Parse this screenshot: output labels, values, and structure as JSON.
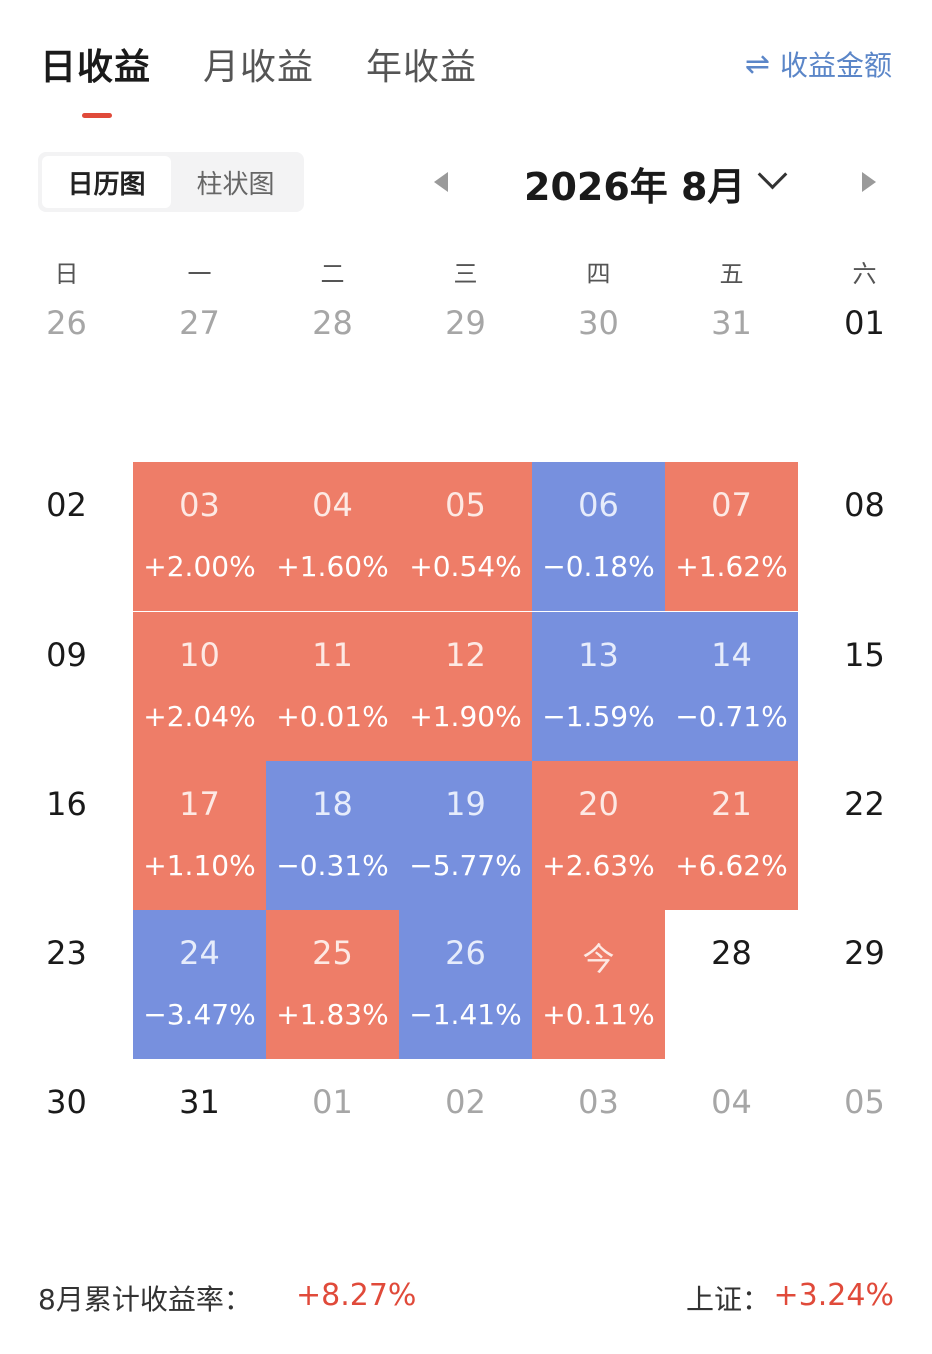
{
  "tabs": [
    {
      "label": "日收益",
      "active": true
    },
    {
      "label": "月收益",
      "active": false
    },
    {
      "label": "年收益",
      "active": false
    }
  ],
  "toggle_amount": {
    "icon": "swap-arrows-icon",
    "label": "收益金额"
  },
  "view_switch": [
    {
      "label": "日历图",
      "active": true
    },
    {
      "label": "柱状图",
      "active": false
    }
  ],
  "month_title": "2026年 8月",
  "weekdays": [
    "日",
    "一",
    "二",
    "三",
    "四",
    "五",
    "六"
  ],
  "colors": {
    "up": "#ee7d68",
    "down": "#7790de",
    "accent": "#e04a3a"
  },
  "weeks": [
    [
      {
        "day": "26",
        "type": "other"
      },
      {
        "day": "27",
        "type": "other"
      },
      {
        "day": "28",
        "type": "other"
      },
      {
        "day": "29",
        "type": "other"
      },
      {
        "day": "30",
        "type": "other"
      },
      {
        "day": "31",
        "type": "other"
      },
      {
        "day": "01",
        "type": "plain"
      }
    ],
    [
      {
        "day": "02",
        "type": "plain"
      },
      {
        "day": "03",
        "type": "up",
        "pct": "+2.00%"
      },
      {
        "day": "04",
        "type": "up",
        "pct": "+1.60%"
      },
      {
        "day": "05",
        "type": "up",
        "pct": "+0.54%"
      },
      {
        "day": "06",
        "type": "down",
        "pct": "−0.18%"
      },
      {
        "day": "07",
        "type": "up",
        "pct": "+1.62%"
      },
      {
        "day": "08",
        "type": "plain"
      }
    ],
    [
      {
        "day": "09",
        "type": "plain"
      },
      {
        "day": "10",
        "type": "up",
        "pct": "+2.04%"
      },
      {
        "day": "11",
        "type": "up",
        "pct": "+0.01%"
      },
      {
        "day": "12",
        "type": "up",
        "pct": "+1.90%"
      },
      {
        "day": "13",
        "type": "down",
        "pct": "−1.59%"
      },
      {
        "day": "14",
        "type": "down",
        "pct": "−0.71%"
      },
      {
        "day": "15",
        "type": "plain"
      }
    ],
    [
      {
        "day": "16",
        "type": "plain"
      },
      {
        "day": "17",
        "type": "up",
        "pct": "+1.10%"
      },
      {
        "day": "18",
        "type": "down",
        "pct": "−0.31%"
      },
      {
        "day": "19",
        "type": "down",
        "pct": "−5.77%"
      },
      {
        "day": "20",
        "type": "up",
        "pct": "+2.63%"
      },
      {
        "day": "21",
        "type": "up",
        "pct": "+6.62%"
      },
      {
        "day": "22",
        "type": "plain"
      }
    ],
    [
      {
        "day": "23",
        "type": "plain"
      },
      {
        "day": "24",
        "type": "down",
        "pct": "−3.47%"
      },
      {
        "day": "25",
        "type": "up",
        "pct": "+1.83%"
      },
      {
        "day": "26",
        "type": "down",
        "pct": "−1.41%"
      },
      {
        "day": "今",
        "type": "up",
        "pct": "+0.11%"
      },
      {
        "day": "28",
        "type": "plain"
      },
      {
        "day": "29",
        "type": "plain"
      }
    ],
    [
      {
        "day": "30",
        "type": "plain"
      },
      {
        "day": "31",
        "type": "plain"
      },
      {
        "day": "01",
        "type": "other"
      },
      {
        "day": "02",
        "type": "other"
      },
      {
        "day": "03",
        "type": "other"
      },
      {
        "day": "04",
        "type": "other"
      },
      {
        "day": "05",
        "type": "other"
      }
    ]
  ],
  "footer": {
    "month_return_label": "8月累计收益率：",
    "month_return_value": "+8.27%",
    "index_label": "上证：",
    "index_value": "+3.24%"
  }
}
